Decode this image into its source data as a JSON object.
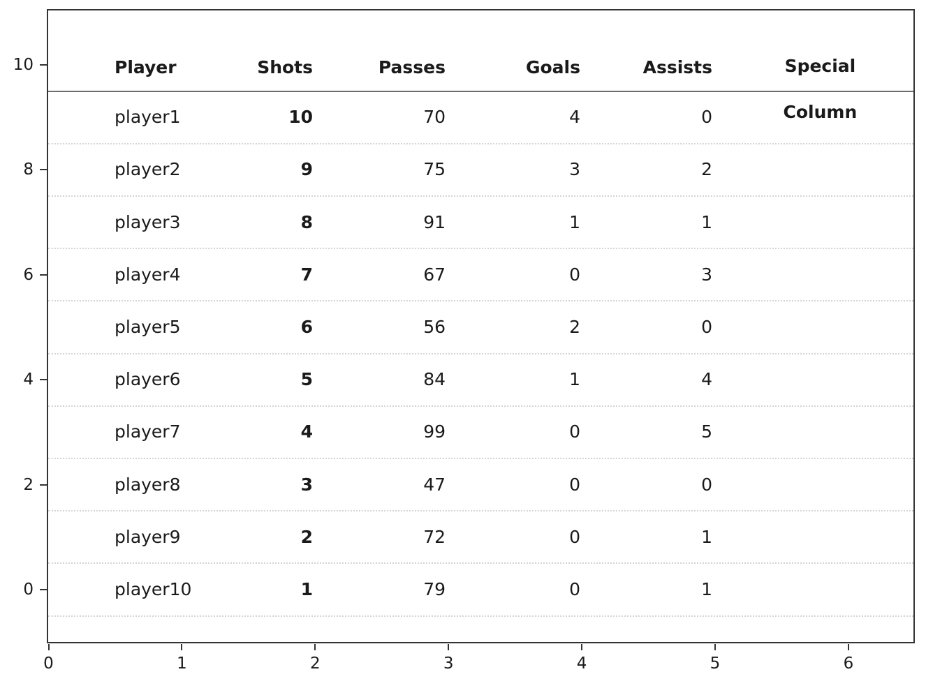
{
  "chart_data": {
    "type": "table",
    "title": "",
    "columns": [
      "Player",
      "Shots",
      "Passes",
      "Goals",
      "Assists",
      "Special Column"
    ],
    "rows": [
      [
        "player1",
        "10",
        "70",
        "4",
        "0",
        ""
      ],
      [
        "player2",
        "9",
        "75",
        "3",
        "2",
        ""
      ],
      [
        "player3",
        "8",
        "91",
        "1",
        "1",
        ""
      ],
      [
        "player4",
        "7",
        "67",
        "0",
        "3",
        ""
      ],
      [
        "player5",
        "6",
        "56",
        "2",
        "0",
        ""
      ],
      [
        "player6",
        "5",
        "84",
        "1",
        "4",
        ""
      ],
      [
        "player7",
        "4",
        "99",
        "0",
        "5",
        ""
      ],
      [
        "player8",
        "3",
        "47",
        "0",
        "0",
        ""
      ],
      [
        "player9",
        "2",
        "72",
        "0",
        "1",
        ""
      ],
      [
        "player10",
        "1",
        "79",
        "0",
        "1",
        ""
      ]
    ],
    "bold_columns": [
      "Shots"
    ],
    "x_axis": {
      "ticks": [
        "0",
        "1",
        "2",
        "3",
        "4",
        "5",
        "6"
      ],
      "lim": [
        0,
        6.5
      ]
    },
    "y_axis": {
      "ticks": [
        "0",
        "2",
        "4",
        "6",
        "8",
        "10"
      ],
      "lim": [
        -1.05,
        11.05
      ]
    },
    "grid": {
      "style": "horizontal dotted row separators",
      "color": "#d4d4d4"
    }
  },
  "header": {
    "player": "Player",
    "shots": "Shots",
    "passes": "Passes",
    "goals": "Goals",
    "assists": "Assists",
    "special_line1": "Special",
    "special_line2": "Column"
  },
  "colors": {
    "frame": "#333333",
    "text": "#1a1a1a",
    "grid": "#d4d4d4",
    "header_rule": "#6e6e6e",
    "background": "#ffffff"
  }
}
